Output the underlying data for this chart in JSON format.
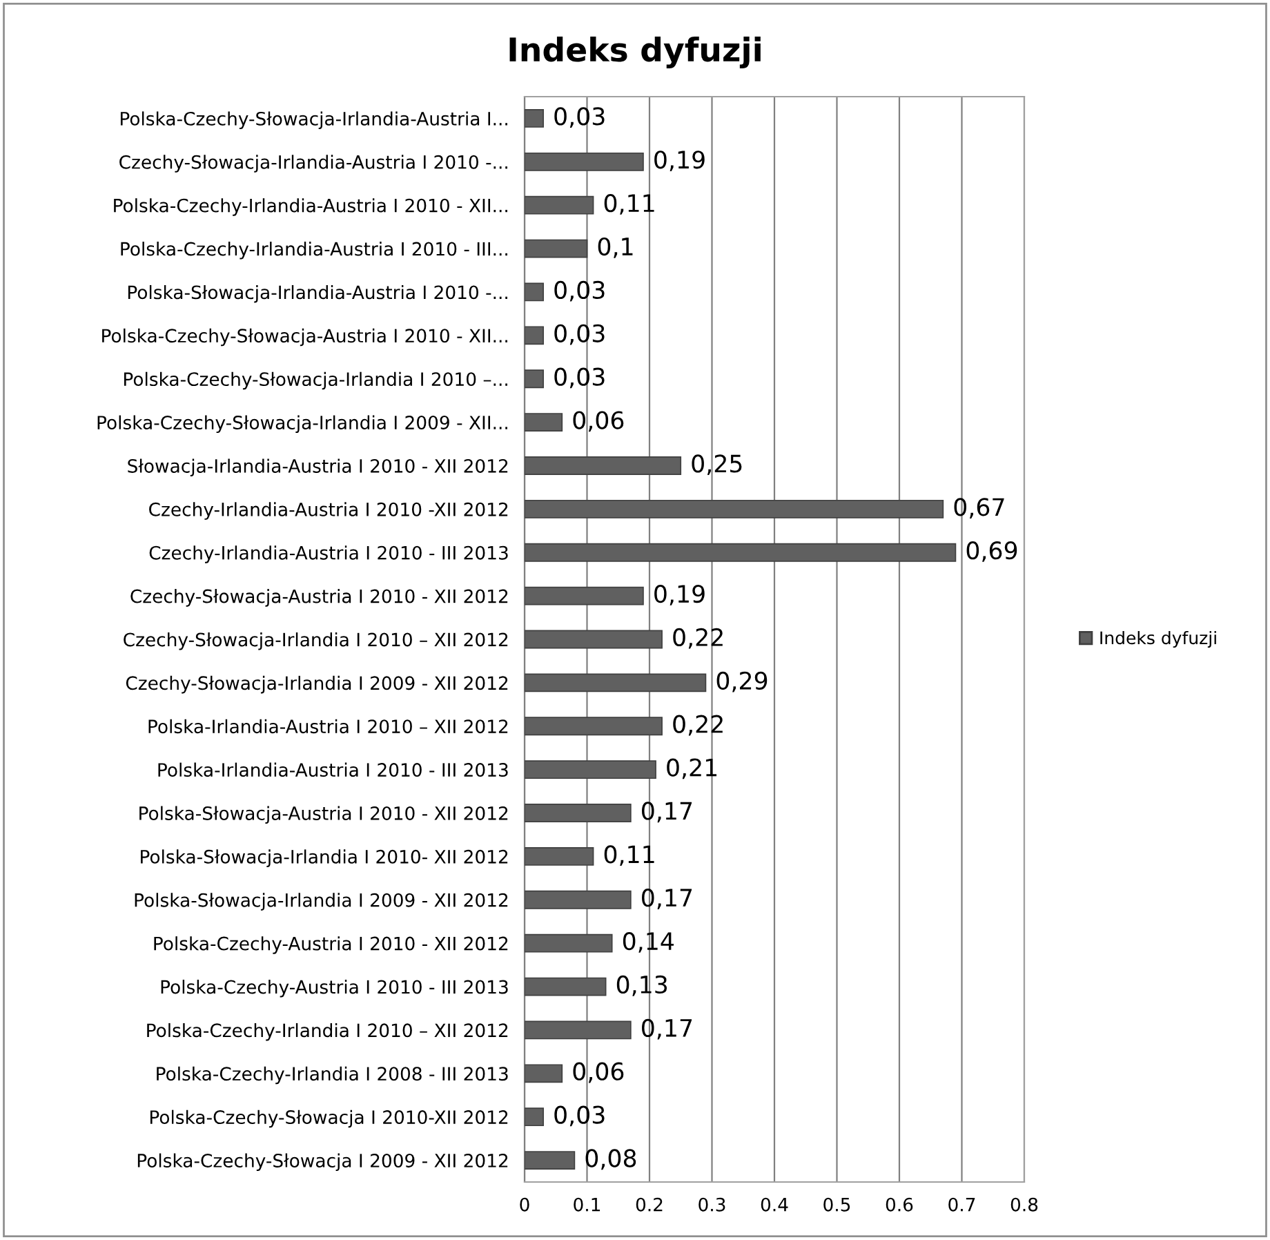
{
  "chart_data": {
    "type": "bar",
    "orientation": "horizontal",
    "title": "Indeks dyfuzji",
    "categories": [
      "Polska-Czechy-Słowacja-Irlandia-Austria I...",
      "Czechy-Słowacja-Irlandia-Austria I 2010 -...",
      "Polska-Czechy-Irlandia-Austria I 2010 - XII...",
      "Polska-Czechy-Irlandia-Austria I 2010 - III...",
      "Polska-Słowacja-Irlandia-Austria I 2010 -...",
      "Polska-Czechy-Słowacja-Austria I 2010 - XII...",
      "Polska-Czechy-Słowacja-Irlandia I 2010 –...",
      "Polska-Czechy-Słowacja-Irlandia I 2009 - XII...",
      "Słowacja-Irlandia-Austria I 2010 - XII 2012",
      "Czechy-Irlandia-Austria I 2010 -XII 2012",
      "Czechy-Irlandia-Austria I 2010 - III 2013",
      "Czechy-Słowacja-Austria I 2010 - XII 2012",
      "Czechy-Słowacja-Irlandia I 2010 – XII 2012",
      "Czechy-Słowacja-Irlandia I 2009 - XII 2012",
      "Polska-Irlandia-Austria I 2010 – XII 2012",
      "Polska-Irlandia-Austria I 2010 - III 2013",
      "Polska-Słowacja-Austria I 2010 - XII 2012",
      "Polska-Słowacja-Irlandia I 2010- XII 2012",
      "Polska-Słowacja-Irlandia I 2009 - XII 2012",
      "Polska-Czechy-Austria I 2010 - XII 2012",
      "Polska-Czechy-Austria I 2010 - III 2013",
      "Polska-Czechy-Irlandia I 2010 – XII 2012",
      "Polska-Czechy-Irlandia I 2008 - III 2013",
      "Polska-Czechy-Słowacja I 2010-XII 2012",
      "Polska-Czechy-Słowacja I 2009 - XII 2012"
    ],
    "series": [
      {
        "name": "Indeks dyfuzji",
        "color": "#606060",
        "values": [
          0.03,
          0.19,
          0.11,
          0.1,
          0.03,
          0.03,
          0.03,
          0.06,
          0.25,
          0.67,
          0.69,
          0.19,
          0.22,
          0.29,
          0.22,
          0.21,
          0.17,
          0.11,
          0.17,
          0.14,
          0.13,
          0.17,
          0.06,
          0.03,
          0.08
        ],
        "value_labels": [
          "0,03",
          "0,19",
          "0,11",
          "0,1",
          "0,03",
          "0,03",
          "0,03",
          "0,06",
          "0,25",
          "0,67",
          "0,69",
          "0,19",
          "0,22",
          "0,29",
          "0,22",
          "0,21",
          "0,17",
          "0,11",
          "0,17",
          "0,14",
          "0,13",
          "0,17",
          "0,06",
          "0,03",
          "0,08"
        ]
      }
    ],
    "xlim": [
      0,
      0.8
    ],
    "xticks": [
      0,
      0.1,
      0.2,
      0.3,
      0.4,
      0.5,
      0.6,
      0.7,
      0.8
    ],
    "grid": "x",
    "legend": "right"
  }
}
